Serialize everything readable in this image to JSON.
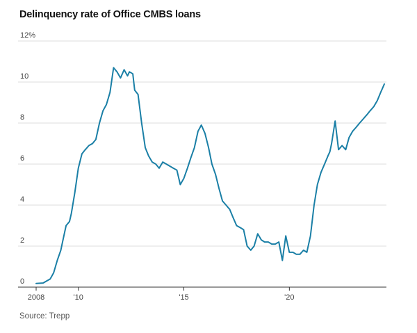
{
  "title": "Delinquency rate of Office CMBS loans",
  "source": "Source: Trepp",
  "chart_data": {
    "type": "line",
    "title": "Delinquency rate of Office CMBS loans",
    "xlabel": "",
    "ylabel": "",
    "xlim": [
      2008.0,
      2024.6
    ],
    "ylim": [
      0,
      12
    ],
    "y_ticks": [
      {
        "value": 0,
        "label": "0"
      },
      {
        "value": 2,
        "label": "2"
      },
      {
        "value": 4,
        "label": "4"
      },
      {
        "value": 6,
        "label": "6"
      },
      {
        "value": 8,
        "label": "8"
      },
      {
        "value": 10,
        "label": "10"
      },
      {
        "value": 12,
        "label": "12%"
      }
    ],
    "x_ticks": [
      {
        "value": 2008,
        "label": "2008"
      },
      {
        "value": 2010,
        "label": "'10"
      },
      {
        "value": 2015,
        "label": "'15"
      },
      {
        "value": 2020,
        "label": "'20"
      }
    ],
    "grid": true,
    "colors": {
      "line": "#1a7fa6",
      "grid": "#dddddd",
      "axis": "#333333"
    },
    "series": [
      {
        "name": "Office CMBS delinquency rate",
        "x": [
          2008.0,
          2008.33,
          2008.5,
          2008.67,
          2008.83,
          2009.0,
          2009.17,
          2009.25,
          2009.42,
          2009.58,
          2009.67,
          2009.83,
          2010.0,
          2010.17,
          2010.33,
          2010.5,
          2010.67,
          2010.83,
          2011.0,
          2011.17,
          2011.33,
          2011.5,
          2011.67,
          2011.83,
          2012.0,
          2012.17,
          2012.33,
          2012.42,
          2012.58,
          2012.67,
          2012.83,
          2013.0,
          2013.17,
          2013.33,
          2013.5,
          2013.67,
          2013.83,
          2014.0,
          2014.17,
          2014.33,
          2014.5,
          2014.67,
          2014.83,
          2015.0,
          2015.17,
          2015.33,
          2015.5,
          2015.67,
          2015.83,
          2016.0,
          2016.17,
          2016.33,
          2016.5,
          2016.67,
          2016.83,
          2017.0,
          2017.08,
          2017.17,
          2017.33,
          2017.5,
          2017.67,
          2017.83,
          2018.0,
          2018.17,
          2018.33,
          2018.5,
          2018.67,
          2018.83,
          2019.0,
          2019.17,
          2019.33,
          2019.5,
          2019.67,
          2019.83,
          2020.0,
          2020.17,
          2020.33,
          2020.5,
          2020.67,
          2020.83,
          2021.0,
          2021.17,
          2021.33,
          2021.5,
          2021.67,
          2021.83,
          2021.92,
          2022.0,
          2022.17,
          2022.33,
          2022.5,
          2022.67,
          2022.83,
          2023.0,
          2023.17,
          2023.33,
          2023.5,
          2023.67,
          2023.83,
          2024.0,
          2024.17,
          2024.33,
          2024.5
        ],
        "values": [
          0.18,
          0.2,
          0.3,
          0.4,
          0.7,
          1.3,
          1.8,
          2.2,
          3.0,
          3.2,
          3.6,
          4.6,
          5.8,
          6.5,
          6.7,
          6.9,
          7.0,
          7.2,
          8.0,
          8.6,
          8.9,
          9.5,
          10.7,
          10.5,
          10.2,
          10.6,
          10.3,
          10.5,
          10.4,
          9.6,
          9.4,
          8.0,
          6.8,
          6.4,
          6.1,
          6.0,
          5.8,
          6.1,
          6.0,
          5.9,
          5.8,
          5.7,
          5.0,
          5.3,
          5.8,
          6.3,
          6.8,
          7.6,
          7.9,
          7.5,
          6.8,
          6.0,
          5.5,
          4.8,
          4.2,
          4.0,
          3.9,
          3.8,
          3.4,
          3.0,
          2.9,
          2.8,
          2.0,
          1.8,
          2.0,
          2.6,
          2.3,
          2.2,
          2.2,
          2.1,
          2.1,
          2.2,
          1.3,
          2.5,
          1.7,
          1.7,
          1.6,
          1.6,
          1.8,
          1.7,
          2.5,
          4.0,
          5.0,
          5.6,
          6.0,
          6.4,
          6.6,
          7.0,
          8.1,
          6.7,
          6.9,
          6.7,
          7.3,
          7.6,
          7.8,
          8.0,
          8.2,
          8.4,
          8.6,
          8.8,
          9.1,
          9.5,
          9.9
        ]
      }
    ]
  }
}
